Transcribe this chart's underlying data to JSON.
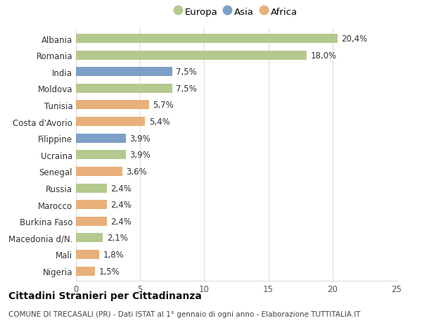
{
  "categories": [
    "Albania",
    "Romania",
    "India",
    "Moldova",
    "Tunisia",
    "Costa d'Avorio",
    "Filippine",
    "Ucraina",
    "Senegal",
    "Russia",
    "Marocco",
    "Burkina Faso",
    "Macedonia d/N.",
    "Mali",
    "Nigeria"
  ],
  "values": [
    20.4,
    18.0,
    7.5,
    7.5,
    5.7,
    5.4,
    3.9,
    3.9,
    3.6,
    2.4,
    2.4,
    2.4,
    2.1,
    1.8,
    1.5
  ],
  "labels": [
    "20,4%",
    "18,0%",
    "7,5%",
    "7,5%",
    "5,7%",
    "5,4%",
    "3,9%",
    "3,9%",
    "3,6%",
    "2,4%",
    "2,4%",
    "2,4%",
    "2,1%",
    "1,8%",
    "1,5%"
  ],
  "continent": [
    "Europa",
    "Europa",
    "Asia",
    "Europa",
    "Africa",
    "Africa",
    "Asia",
    "Europa",
    "Africa",
    "Europa",
    "Africa",
    "Africa",
    "Europa",
    "Africa",
    "Africa"
  ],
  "colors": {
    "Europa": "#b5c98e",
    "Asia": "#7b9fc7",
    "Africa": "#e8b07a"
  },
  "legend_order": [
    "Europa",
    "Asia",
    "Africa"
  ],
  "xlim": [
    0,
    25
  ],
  "xticks": [
    0,
    5,
    10,
    15,
    20,
    25
  ],
  "title": "Cittadini Stranieri per Cittadinanza",
  "subtitle": "COMUNE DI TRECASALI (PR) - Dati ISTAT al 1° gennaio di ogni anno - Elaborazione TUTTITALIA.IT",
  "bg_color": "#ffffff",
  "bar_height": 0.55,
  "grid_color": "#dddddd",
  "label_fontsize": 8.5,
  "tick_fontsize": 8.5,
  "title_fontsize": 10,
  "subtitle_fontsize": 7.5
}
